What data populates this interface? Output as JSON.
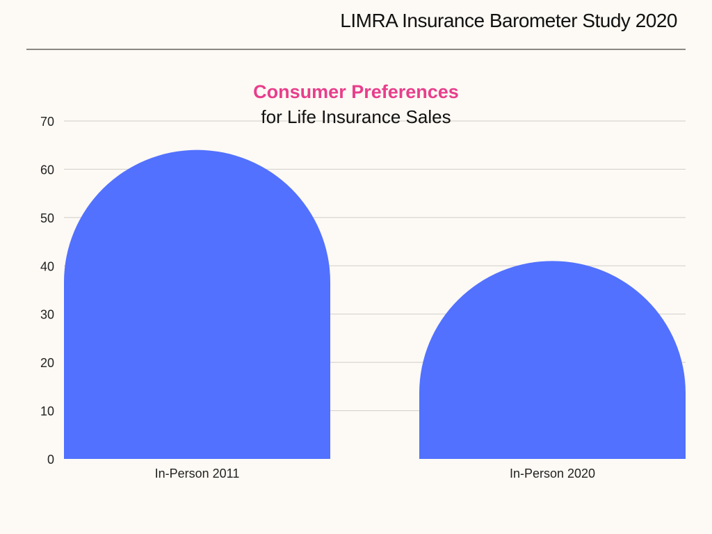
{
  "header": {
    "title": "LIMRA Insurance Barometer Study 2020"
  },
  "colors": {
    "bar": "#5271ff",
    "title": "#e83e8c",
    "grid": "#d0ccc8",
    "background": "#fdf9f4"
  },
  "chart_data": {
    "type": "bar",
    "title": "Consumer Preferences",
    "subtitle": "for Life Insurance Sales",
    "categories": [
      "In-Person 2011",
      "In-Person 2020"
    ],
    "values": [
      64,
      41
    ],
    "xlabel": "",
    "ylabel": "",
    "ylim": [
      0,
      70
    ],
    "yticks": [
      0,
      10,
      20,
      30,
      40,
      50,
      60,
      70
    ],
    "grid": true,
    "legend": "none",
    "bar_style": "rounded-top"
  }
}
